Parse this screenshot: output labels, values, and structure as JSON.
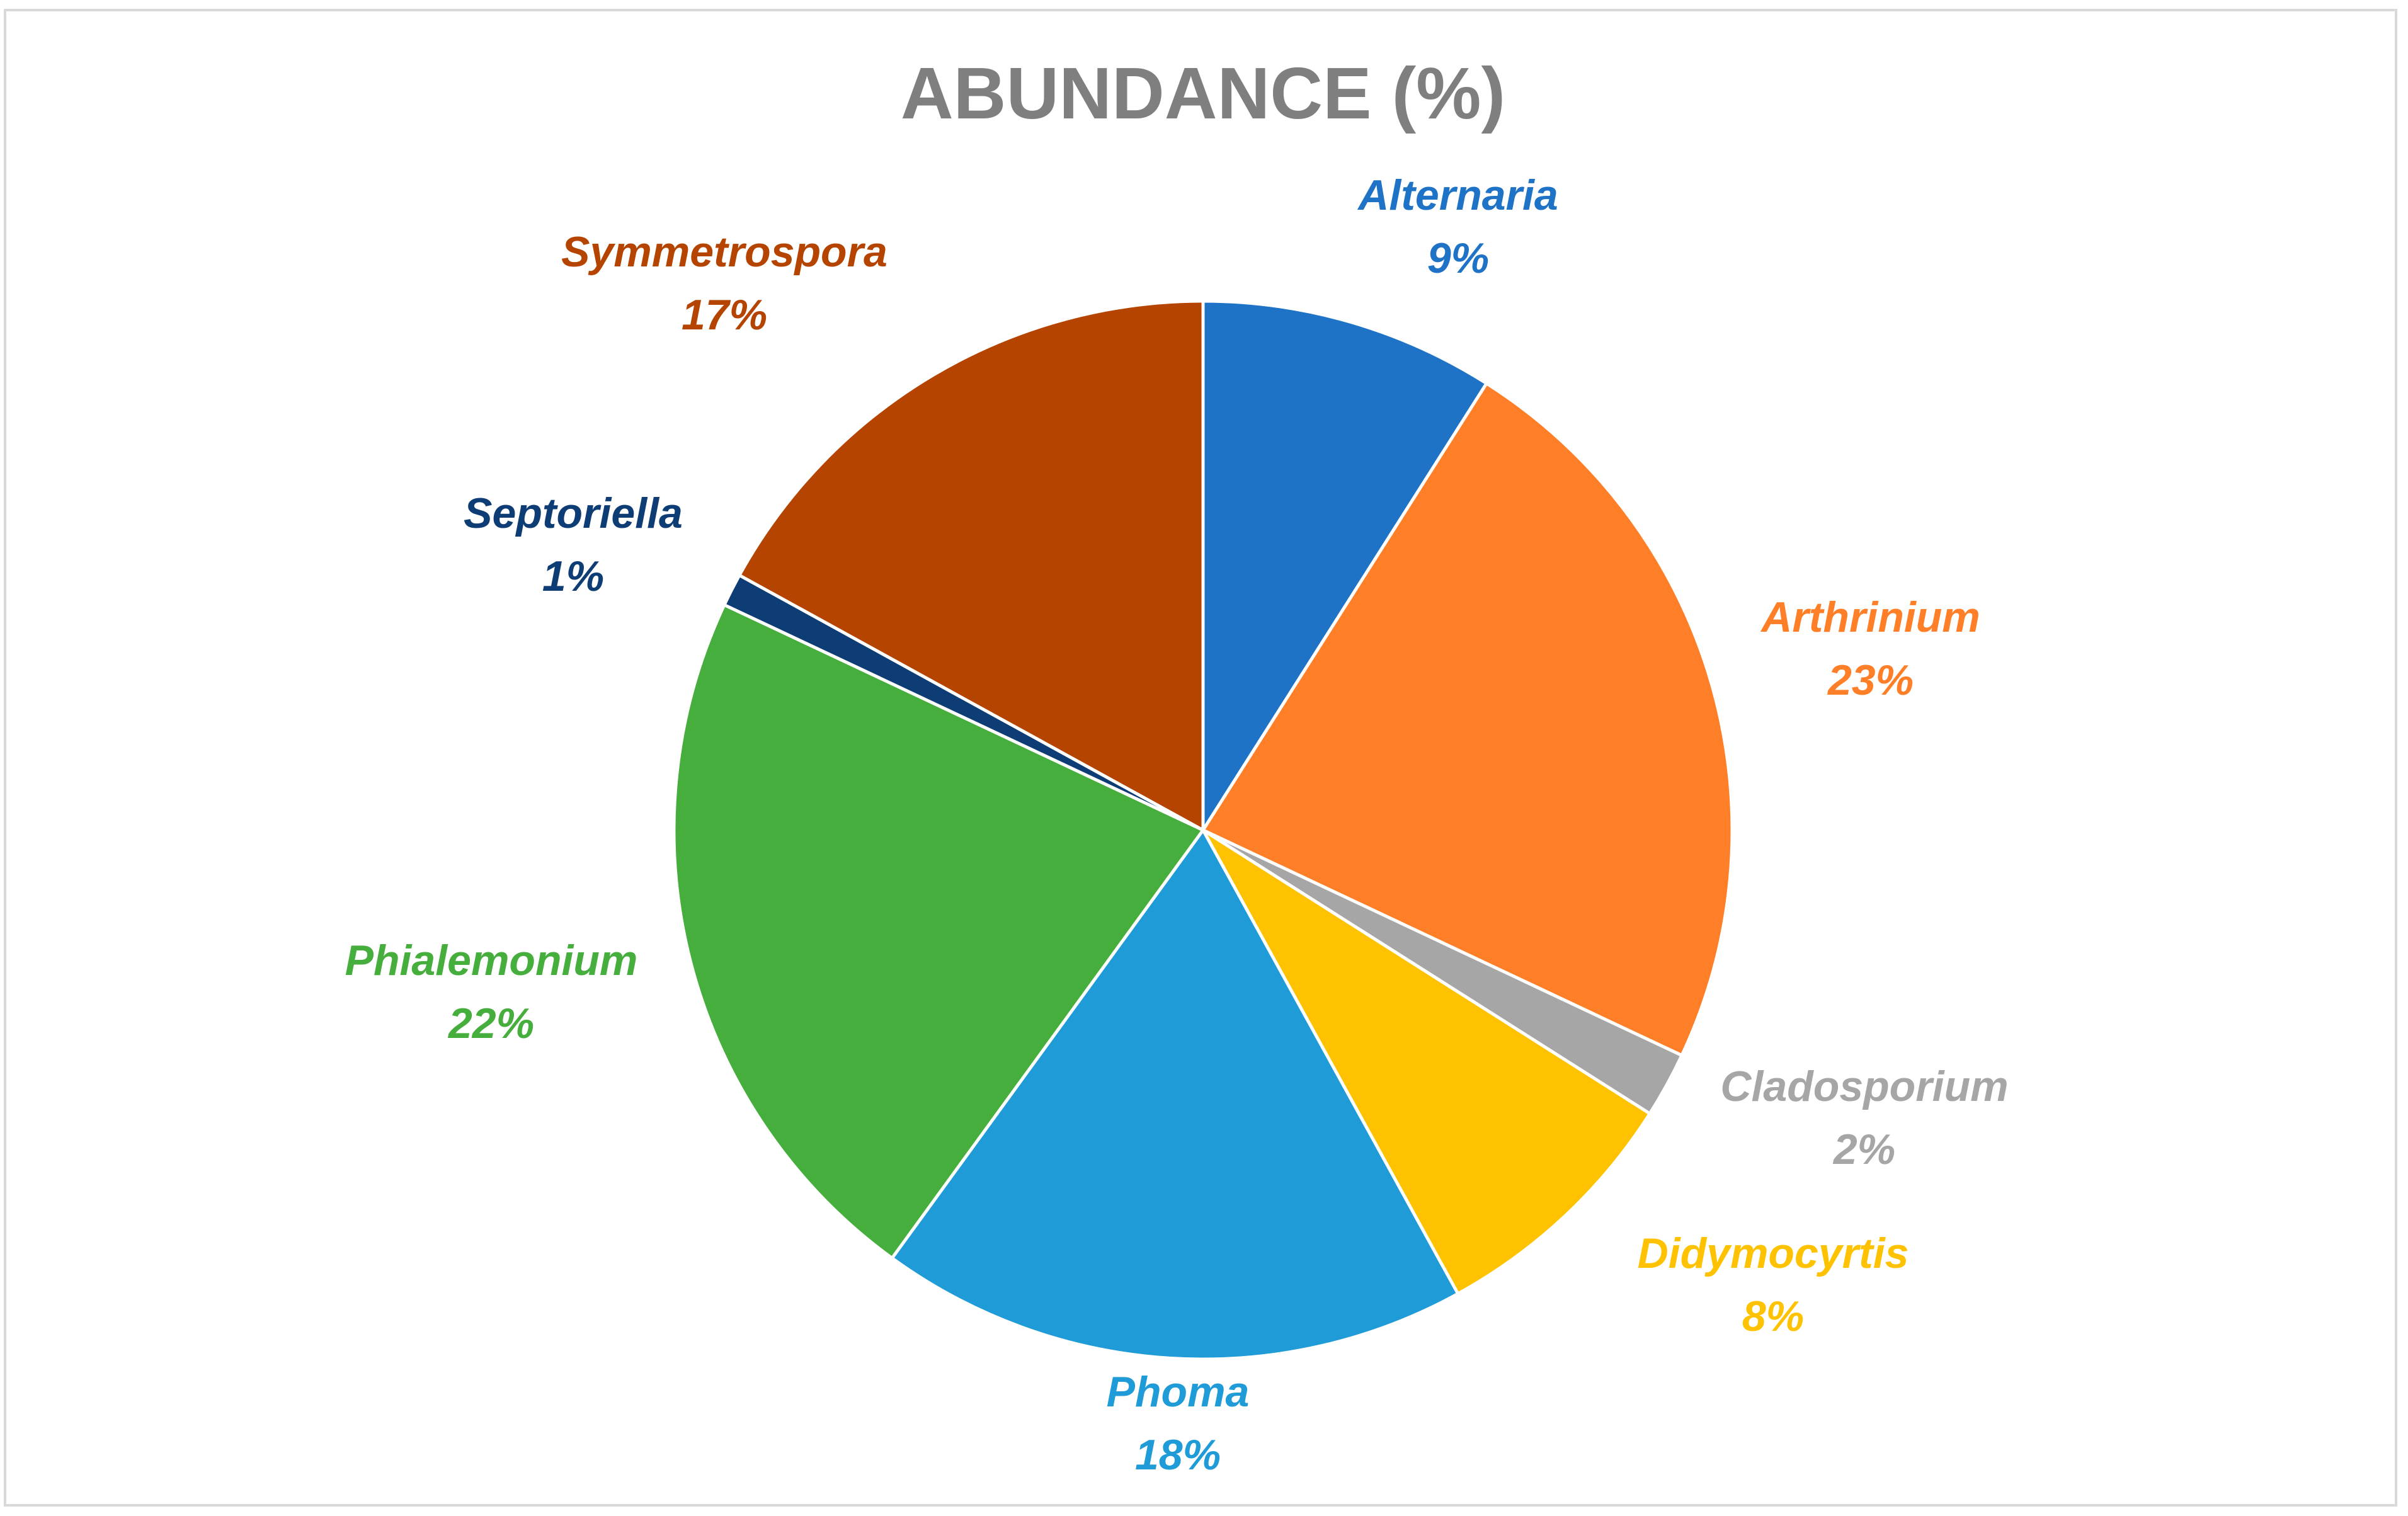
{
  "chart_data": {
    "type": "pie",
    "title": "ABUNDANCE (%)",
    "start_angle_deg": 0,
    "direction": "clockwise",
    "slices": [
      {
        "label": "Alternaria",
        "value": 9,
        "value_label": "9%",
        "color": "#1f73c6"
      },
      {
        "label": "Arthrinium",
        "value": 23,
        "value_label": "23%",
        "color": "#fe7f27"
      },
      {
        "label": "Cladosporium",
        "value": 2,
        "value_label": "2%",
        "color": "#a6a6a6"
      },
      {
        "label": "Didymocyrtis",
        "value": 8,
        "value_label": "8%",
        "color": "#fec200"
      },
      {
        "label": "Phoma",
        "value": 18,
        "value_label": "18%",
        "color": "#1f9bd8"
      },
      {
        "label": "Phialemonium",
        "value": 22,
        "value_label": "22%",
        "color": "#46ae3c"
      },
      {
        "label": "Septoriella",
        "value": 1,
        "value_label": "1%",
        "color": "#0e3d75"
      },
      {
        "label": "Symmetrospora",
        "value": 17,
        "value_label": "17%",
        "color": "#b44400"
      }
    ],
    "legend": "none",
    "data_labels": "outside"
  }
}
